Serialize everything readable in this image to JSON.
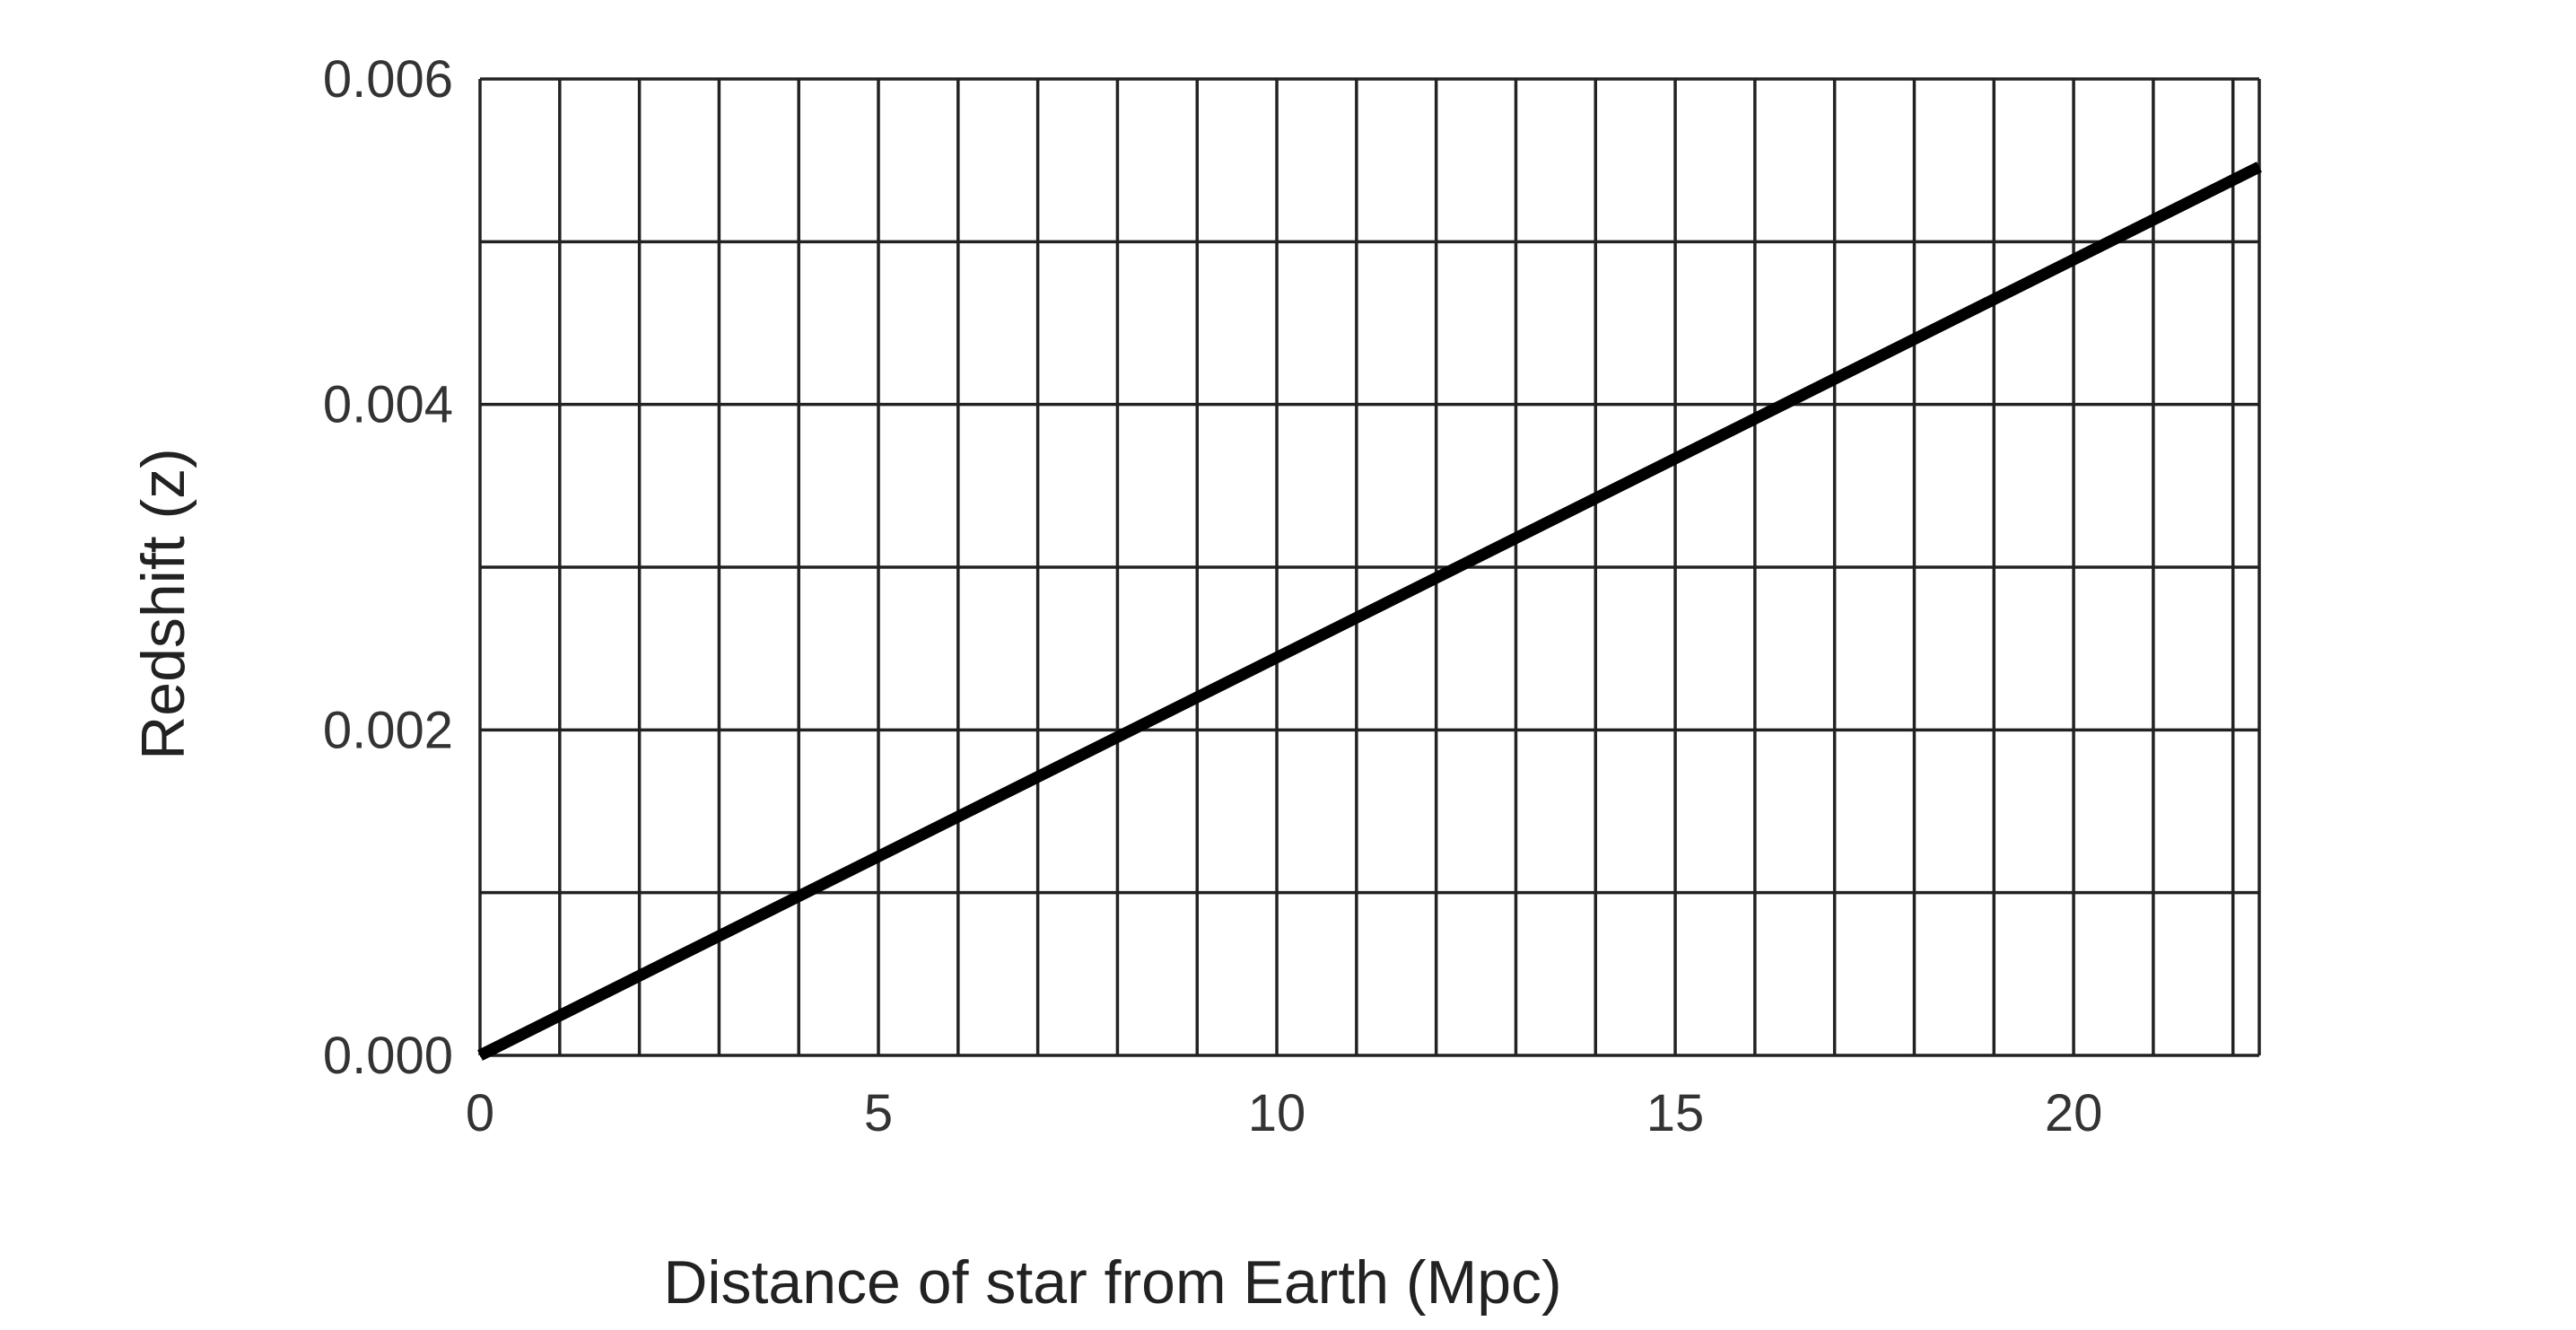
{
  "chart_data": {
    "type": "line",
    "title": "",
    "xlabel": "Distance of star from Earth (Mpc)",
    "ylabel": "Redshift (z)",
    "xlim": [
      0,
      22.33
    ],
    "ylim": [
      0,
      0.006
    ],
    "x_ticks": [
      {
        "value": 0,
        "label": "0"
      },
      {
        "value": 5,
        "label": "5"
      },
      {
        "value": 10,
        "label": "10"
      },
      {
        "value": 15,
        "label": "15"
      },
      {
        "value": 20,
        "label": "20"
      }
    ],
    "y_ticks": [
      {
        "value": 0,
        "label": "0.000"
      },
      {
        "value": 0.002,
        "label": "0.002"
      },
      {
        "value": 0.004,
        "label": "0.004"
      },
      {
        "value": 0.006,
        "label": "0.006"
      }
    ],
    "x_grid_step": 1,
    "y_grid_step": 0.001,
    "grid": true,
    "series": [
      {
        "color": "#000000",
        "points": [
          {
            "x": 0,
            "y": 0
          },
          {
            "x": 22.33,
            "y": 0.00546
          }
        ]
      }
    ]
  }
}
